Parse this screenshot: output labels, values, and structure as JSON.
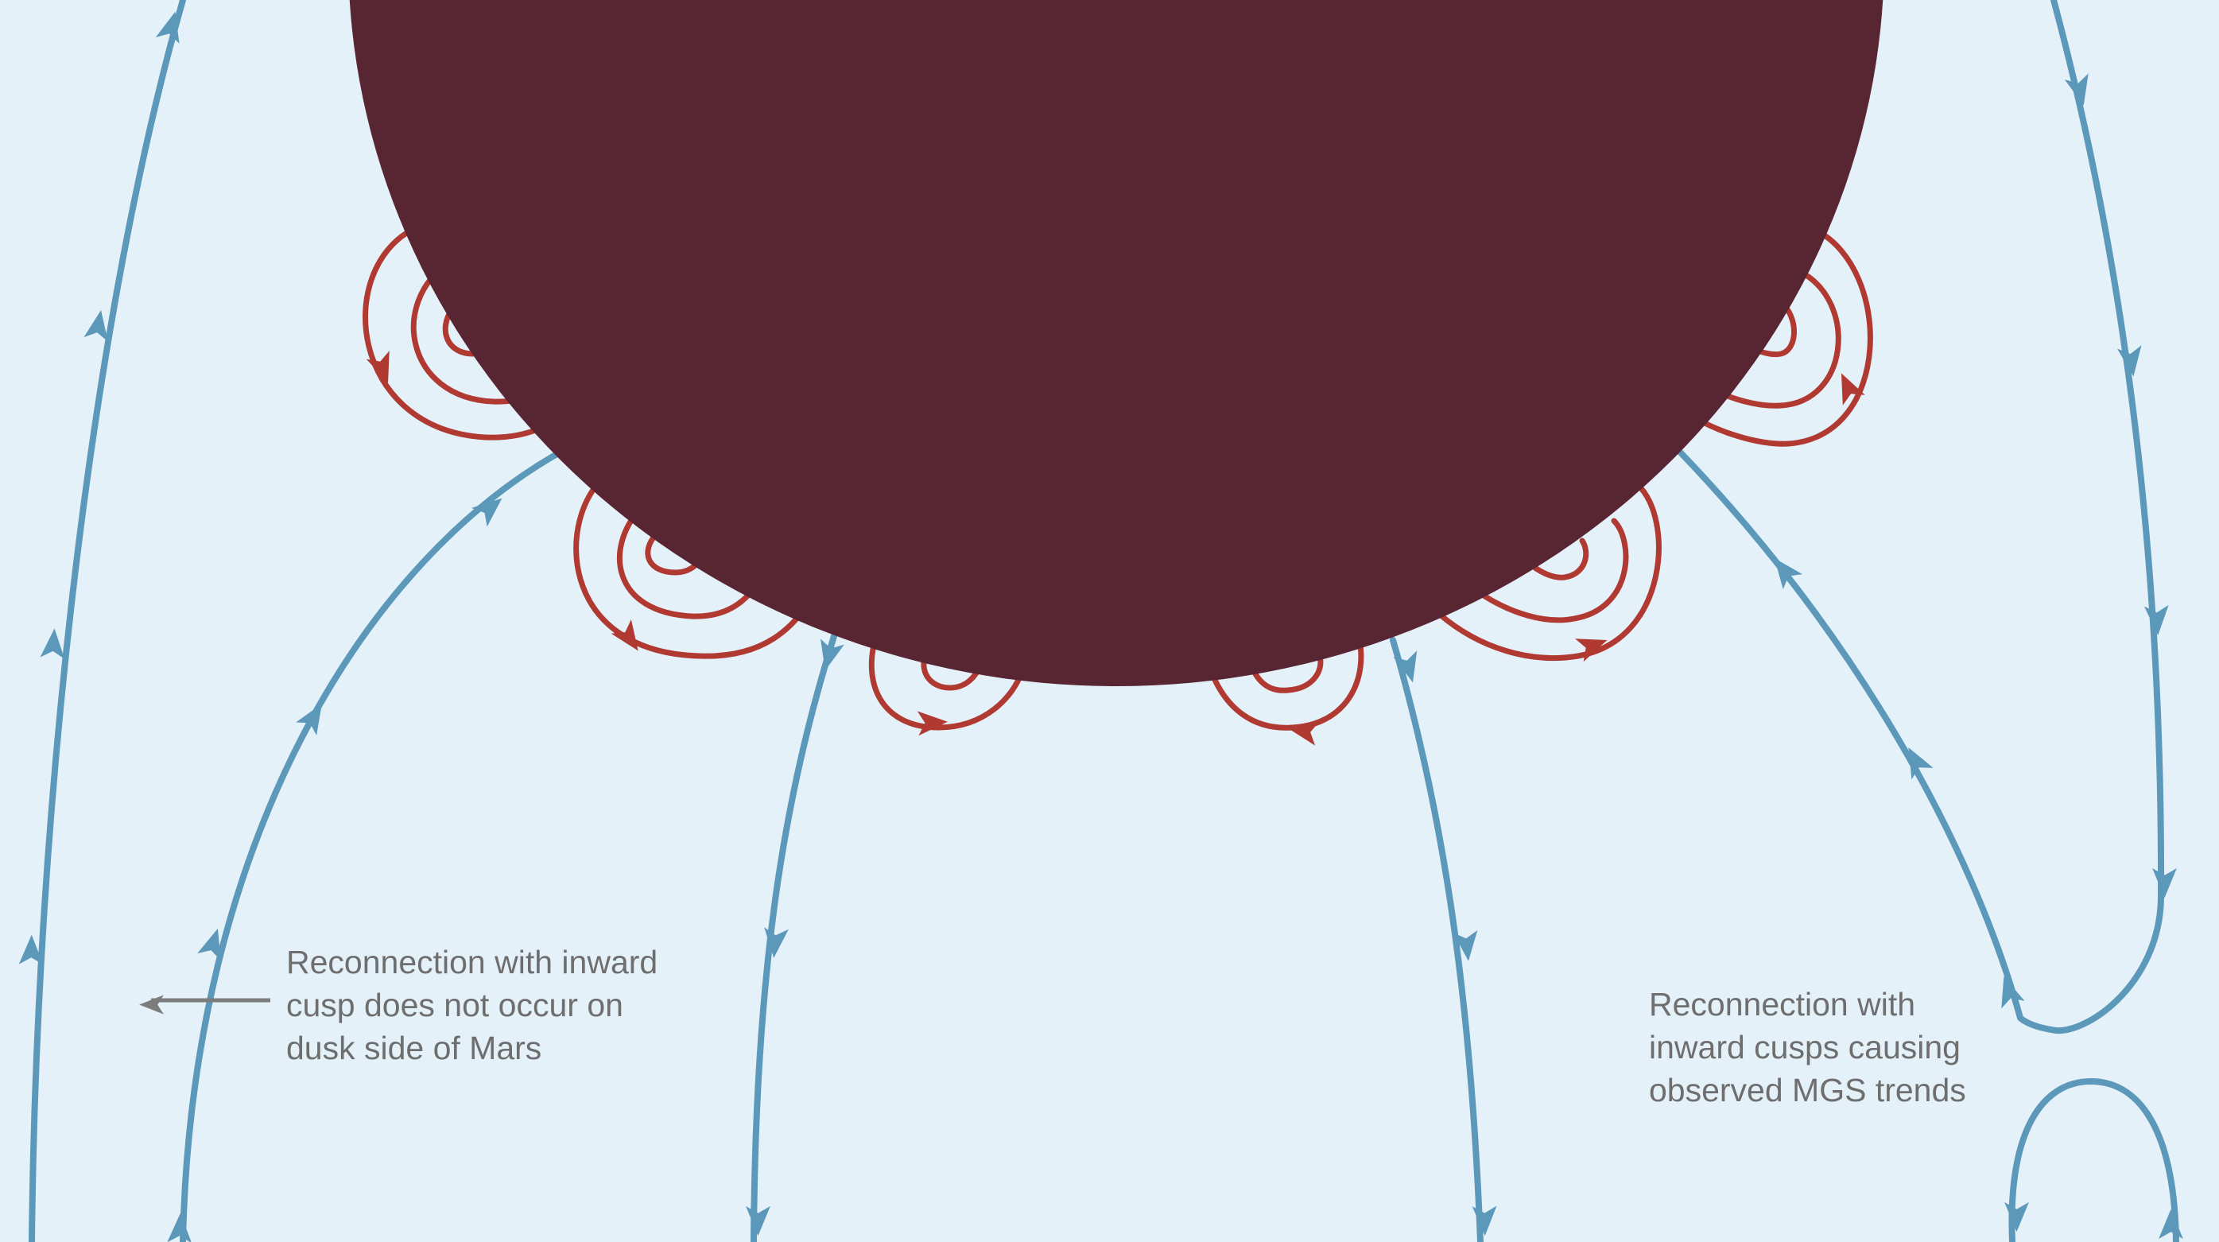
{
  "annotations": {
    "dusk_side": "Reconnection with inward\ncusp does not occur on\ndusk side of Mars",
    "mgs_trends": "Reconnection with\ninward cusps causing\nobserved MGS trends"
  },
  "colors": {
    "background": "#e5f1f9",
    "planet": "#582533",
    "solar_wind_field_line": "#5b98b9",
    "crustal_field_loop": "#b03a32",
    "annotation_text": "#6e6e6e",
    "pointer_arrow": "#7c7c7c"
  }
}
